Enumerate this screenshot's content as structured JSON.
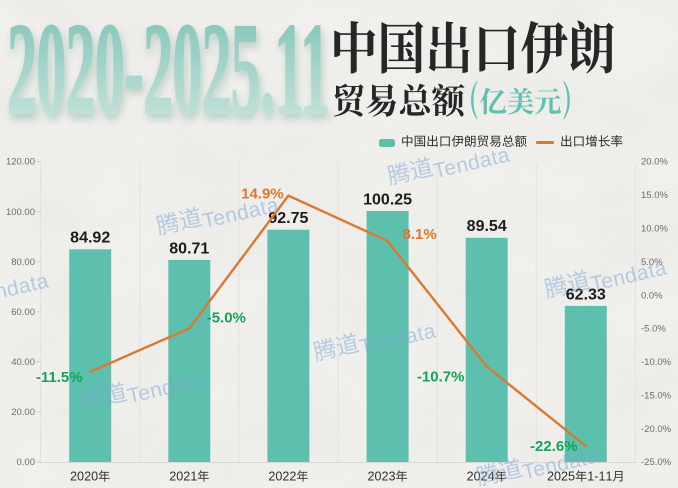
{
  "header": {
    "period": "2020-2025.11",
    "title_line1": "中国出口伊朗",
    "title_line2": "贸易总额",
    "title_unit": "(亿美元)"
  },
  "legend": {
    "bar_label": "中国出口伊朗贸易总额",
    "line_label": "出口增长率"
  },
  "watermark": {
    "text": "腾道Tendata"
  },
  "colors": {
    "bar": "#5dc0af",
    "line": "#da7931",
    "positive_label": "#e0762b",
    "negative_label": "#13a35a",
    "value_label": "#1c1c1c",
    "axis_label": "#6b6b6b",
    "category_label": "#303030",
    "title_dark": "#262626",
    "title_teal": "#5ec0b1",
    "big_number_top": "#84c5b8",
    "big_number_bottom": "#cde7e0",
    "watermark": "#79a6da"
  },
  "chart_data": {
    "type": "combo",
    "title": "2020-2025.11 中国出口伊朗贸易总额(亿美元)",
    "categories": [
      "2020年",
      "2021年",
      "2022年",
      "2023年",
      "2024年",
      "2025年1-11月"
    ],
    "series": [
      {
        "name": "中国出口伊朗贸易总额",
        "type": "bar",
        "axis": "left",
        "values": [
          84.92,
          80.71,
          92.75,
          100.25,
          89.54,
          62.33
        ]
      },
      {
        "name": "出口增长率",
        "type": "line",
        "axis": "right",
        "unit": "%",
        "values": [
          -11.5,
          -5.0,
          14.9,
          8.1,
          -10.7,
          -22.6
        ]
      }
    ],
    "left_axis": {
      "min": 0,
      "max": 120,
      "tick_step": 20,
      "ticks": [
        "120.00",
        "100.00",
        "80.00",
        "60.00",
        "40.00",
        "20.00",
        "0.00"
      ]
    },
    "right_axis": {
      "min": -25,
      "max": 20,
      "tick_step": 5,
      "ticks": [
        "20.0%",
        "15.0%",
        "10.0%",
        "5.0%",
        "0.0%",
        "-5.0%",
        "-10.0%",
        "-15.0%",
        "-20.0%",
        "-25.0%"
      ]
    },
    "grid": "vertical-only",
    "legend_position": "top-right"
  }
}
